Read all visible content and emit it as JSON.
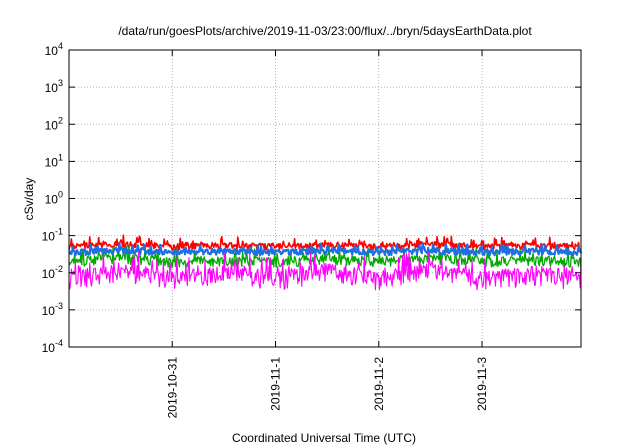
{
  "chart_data": {
    "type": "line",
    "title": "/data/run/goesPlots/archive/2019-11-03/23:00/flux/../bryn/5daysEarthData.plot",
    "xlabel": "Coordinated Universal Time (UTC)",
    "ylabel": "cSv/day",
    "yscale": "log",
    "ylim": [
      0.0001,
      10000
    ],
    "xlim": [
      "2019-10-30 00:00",
      "2019-11-03 23:00"
    ],
    "y_ticks": [
      {
        "base": "10",
        "exp": "-4",
        "value": 0.0001
      },
      {
        "base": "10",
        "exp": "-3",
        "value": 0.001
      },
      {
        "base": "10",
        "exp": "-2",
        "value": 0.01
      },
      {
        "base": "10",
        "exp": "-1",
        "value": 0.1
      },
      {
        "base": "10",
        "exp": "0",
        "value": 1
      },
      {
        "base": "10",
        "exp": "1",
        "value": 10
      },
      {
        "base": "10",
        "exp": "2",
        "value": 100
      },
      {
        "base": "10",
        "exp": "3",
        "value": 1000
      },
      {
        "base": "10",
        "exp": "4",
        "value": 10000
      }
    ],
    "x_ticks": [
      {
        "label": "2019-10-31",
        "value": "2019-10-31 00:00"
      },
      {
        "label": "2019-11-1",
        "value": "2019-11-01 00:00"
      },
      {
        "label": "2019-11-2",
        "value": "2019-11-02 00:00"
      },
      {
        "label": "2019-11-3",
        "value": "2019-11-03 00:00"
      }
    ],
    "grid": true,
    "legend": "none",
    "series": [
      {
        "color": "#ff0000",
        "x": [
          "2019-10-30 00:00",
          "2019-10-30 12:00",
          "2019-10-31 00:00",
          "2019-10-31 12:00",
          "2019-11-01 00:00",
          "2019-11-01 12:00",
          "2019-11-02 00:00",
          "2019-11-02 12:00",
          "2019-11-03 00:00",
          "2019-11-03 12:00",
          "2019-11-03 23:00"
        ],
        "y": [
          0.05,
          0.06,
          0.05,
          0.055,
          0.05,
          0.055,
          0.05,
          0.06,
          0.05,
          0.055,
          0.05
        ]
      },
      {
        "color": "#00aa00",
        "x": [
          "2019-10-30 00:00",
          "2019-10-30 12:00",
          "2019-10-31 00:00",
          "2019-10-31 12:00",
          "2019-11-01 00:00",
          "2019-11-01 12:00",
          "2019-11-02 00:00",
          "2019-11-02 12:00",
          "2019-11-03 00:00",
          "2019-11-03 12:00",
          "2019-11-03 23:00"
        ],
        "y": [
          0.02,
          0.025,
          0.02,
          0.022,
          0.02,
          0.024,
          0.02,
          0.025,
          0.02,
          0.022,
          0.02
        ]
      },
      {
        "color": "#1f6fe0",
        "x": [
          "2019-10-30 00:00",
          "2019-10-30 12:00",
          "2019-10-31 00:00",
          "2019-10-31 12:00",
          "2019-11-01 00:00",
          "2019-11-01 12:00",
          "2019-11-02 00:00",
          "2019-11-02 12:00",
          "2019-11-03 00:00",
          "2019-11-03 12:00",
          "2019-11-03 23:00"
        ],
        "y": [
          0.035,
          0.04,
          0.035,
          0.038,
          0.035,
          0.04,
          0.035,
          0.04,
          0.035,
          0.038,
          0.035
        ]
      },
      {
        "color": "#ff00ff",
        "x": [
          "2019-10-30 00:00",
          "2019-10-30 12:00",
          "2019-10-31 00:00",
          "2019-10-31 12:00",
          "2019-11-01 00:00",
          "2019-11-01 12:00",
          "2019-11-02 00:00",
          "2019-11-02 12:00",
          "2019-11-03 00:00",
          "2019-11-03 12:00",
          "2019-11-03 23:00"
        ],
        "y": [
          0.007,
          0.012,
          0.007,
          0.01,
          0.007,
          0.012,
          0.007,
          0.012,
          0.007,
          0.01,
          0.007
        ]
      }
    ]
  }
}
